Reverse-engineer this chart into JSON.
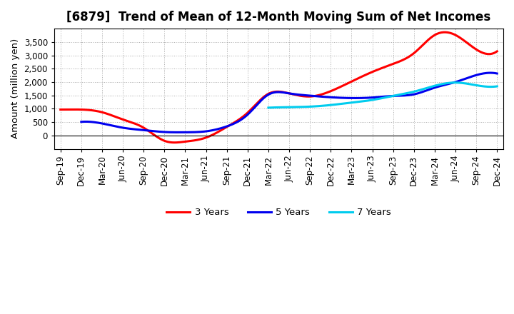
{
  "title": "[6879]  Trend of Mean of 12-Month Moving Sum of Net Incomes",
  "ylabel": "Amount (million yen)",
  "background_color": "#ffffff",
  "plot_bg_color": "#ffffff",
  "grid_color": "#aaaaaa",
  "x_labels": [
    "Sep-19",
    "Dec-19",
    "Mar-20",
    "Jun-20",
    "Sep-20",
    "Dec-20",
    "Mar-21",
    "Jun-21",
    "Sep-21",
    "Dec-21",
    "Mar-22",
    "Jun-22",
    "Sep-22",
    "Dec-22",
    "Mar-23",
    "Jun-23",
    "Sep-23",
    "Dec-23",
    "Mar-24",
    "Jun-24",
    "Sep-24",
    "Dec-24"
  ],
  "series": {
    "3 Years": {
      "color": "#ff0000",
      "data": [
        970,
        970,
        870,
        600,
        290,
        -200,
        -230,
        -80,
        320,
        850,
        1560,
        1575,
        1460,
        1660,
        2020,
        2380,
        2680,
        3080,
        3760,
        3760,
        3220,
        3150
      ]
    },
    "5 Years": {
      "color": "#0000ee",
      "data": [
        null,
        510,
        450,
        290,
        200,
        130,
        120,
        155,
        340,
        780,
        1530,
        1575,
        1490,
        1430,
        1400,
        1420,
        1480,
        1540,
        1790,
        2000,
        2260,
        2320
      ]
    },
    "7 Years": {
      "color": "#00ccee",
      "data": [
        null,
        null,
        null,
        null,
        null,
        null,
        null,
        null,
        null,
        null,
        1040,
        1060,
        1080,
        1140,
        1230,
        1330,
        1480,
        1640,
        1860,
        1980,
        1880,
        1840
      ]
    },
    "10 Years": {
      "color": "#008800",
      "data": [
        null,
        null,
        null,
        null,
        null,
        null,
        null,
        null,
        null,
        null,
        null,
        null,
        null,
        null,
        null,
        null,
        null,
        null,
        null,
        null,
        null,
        null
      ]
    }
  },
  "ylim": [
    -500,
    4000
  ],
  "yticks": [
    0,
    500,
    1000,
    1500,
    2000,
    2500,
    3000,
    3500
  ],
  "title_fontsize": 12,
  "tick_fontsize": 8.5,
  "label_fontsize": 9.5
}
